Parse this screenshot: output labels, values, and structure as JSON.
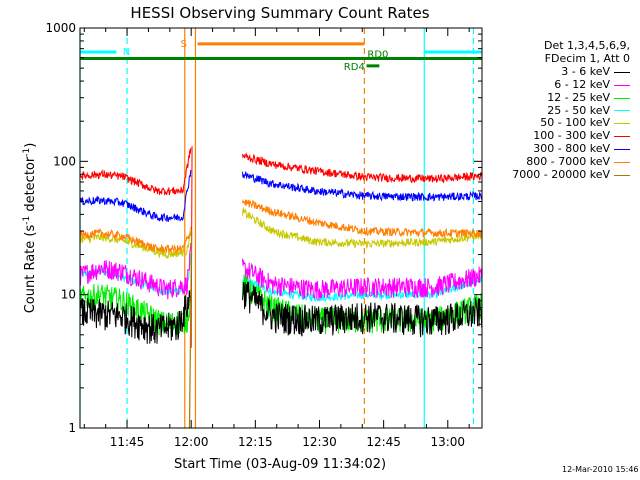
{
  "chart_data": {
    "type": "line",
    "title": "HESSI Observing Summary Count Rates",
    "xlabel": "Start Time (03-Aug-09 11:34:02)",
    "ylabel_main": "Count Rate (s",
    "ylabel_sup1": "-1",
    "ylabel_mid": " detector",
    "ylabel_sup2": "-1",
    "ylabel_end": ")",
    "y_scale": "log",
    "ylim": [
      1,
      1000
    ],
    "xlim": [
      "11:34",
      "13:08"
    ],
    "x_ticks": [
      "11:45",
      "12:00",
      "12:15",
      "12:30",
      "12:45",
      "13:00"
    ],
    "y_ticks": [
      "1",
      "10",
      "100",
      "1000"
    ],
    "legend_header": [
      "Det 1,3,4,5,6,9,",
      "FDecim 1, Att 0"
    ],
    "legend_placement": "right, outside plot",
    "series": [
      {
        "name": "3 - 6 keV",
        "color": "#000000",
        "before": [
          [
            0,
            7.5
          ],
          [
            10,
            7
          ],
          [
            18,
            5.5
          ],
          [
            23,
            6
          ],
          [
            26,
            10
          ]
        ],
        "after": [
          [
            38,
            11
          ],
          [
            45,
            7
          ],
          [
            55,
            6.5
          ],
          [
            67,
            7
          ],
          [
            83,
            6.5
          ],
          [
            94,
            7.5
          ]
        ]
      },
      {
        "name": "6 - 12 keV",
        "color": "#ff00ff",
        "before": [
          [
            0,
            14
          ],
          [
            5,
            16
          ],
          [
            10,
            15
          ],
          [
            20,
            11
          ],
          [
            25,
            12
          ],
          [
            26,
            22
          ]
        ],
        "after": [
          [
            38,
            16
          ],
          [
            45,
            12
          ],
          [
            55,
            11
          ],
          [
            67,
            11.5
          ],
          [
            83,
            11.5
          ],
          [
            94,
            14
          ]
        ]
      },
      {
        "name": "12 - 25 keV",
        "color": "#00ee00",
        "before": [
          [
            0,
            9.5
          ],
          [
            5,
            10
          ],
          [
            10,
            9
          ],
          [
            20,
            6
          ],
          [
            25,
            6.5
          ],
          [
            26,
            10
          ]
        ],
        "after": [
          [
            38,
            12
          ],
          [
            45,
            8
          ],
          [
            55,
            6.5
          ],
          [
            67,
            6.5
          ],
          [
            83,
            6.5
          ],
          [
            94,
            8.5
          ]
        ]
      },
      {
        "name": "25 - 50 keV",
        "color": "#00ffff",
        "before": [
          [
            0,
            14
          ],
          [
            5,
            15
          ],
          [
            10,
            13.5
          ],
          [
            20,
            10.5
          ],
          [
            25,
            11
          ],
          [
            26,
            20
          ]
        ],
        "after": [
          [
            38,
            13
          ],
          [
            45,
            10.5
          ],
          [
            55,
            9.5
          ],
          [
            67,
            10
          ],
          [
            83,
            10
          ],
          [
            94,
            13
          ]
        ]
      },
      {
        "name": "50 - 100 keV",
        "color": "#c8c800",
        "before": [
          [
            0,
            26
          ],
          [
            5,
            27
          ],
          [
            10,
            25.5
          ],
          [
            20,
            20
          ],
          [
            25,
            21
          ],
          [
            26,
            32
          ]
        ],
        "after": [
          [
            38,
            42
          ],
          [
            45,
            30
          ],
          [
            55,
            25
          ],
          [
            67,
            24
          ],
          [
            83,
            25
          ],
          [
            94,
            28
          ]
        ]
      },
      {
        "name": "100 - 300 keV",
        "color": "#ff0000",
        "before": [
          [
            0,
            78
          ],
          [
            5,
            80
          ],
          [
            10,
            77
          ],
          [
            18,
            60
          ],
          [
            24,
            60
          ],
          [
            26,
            130
          ]
        ],
        "after": [
          [
            38,
            110
          ],
          [
            45,
            95
          ],
          [
            55,
            85
          ],
          [
            67,
            76
          ],
          [
            83,
            74
          ],
          [
            94,
            78
          ]
        ]
      },
      {
        "name": "300 - 800 keV",
        "color": "#0000ff",
        "before": [
          [
            0,
            50
          ],
          [
            5,
            51
          ],
          [
            10,
            49
          ],
          [
            18,
            38
          ],
          [
            24,
            38
          ],
          [
            26,
            90
          ]
        ],
        "after": [
          [
            38,
            80
          ],
          [
            45,
            68
          ],
          [
            55,
            60
          ],
          [
            67,
            55
          ],
          [
            83,
            54
          ],
          [
            94,
            55
          ]
        ]
      },
      {
        "name": "800 - 7000 keV",
        "color": "#ff7f00",
        "before": [
          [
            0,
            28
          ],
          [
            5,
            29
          ],
          [
            10,
            27.5
          ],
          [
            18,
            22
          ],
          [
            24,
            22
          ],
          [
            26,
            30
          ]
        ],
        "after": [
          [
            38,
            50
          ],
          [
            45,
            42
          ],
          [
            55,
            35
          ],
          [
            67,
            30
          ],
          [
            83,
            29
          ],
          [
            94,
            29
          ]
        ]
      },
      {
        "name": "7000 - 20000 keV",
        "color": "#a67c00",
        "before": [],
        "after": []
      }
    ],
    "flags": [
      {
        "label": "N",
        "color": "#00ffff",
        "segments": [
          [
            0,
            8.5
          ],
          [
            80.5,
            94
          ]
        ],
        "y": 660
      },
      {
        "label": "S",
        "color": "#ff7f00",
        "segments": [
          [
            27.5,
            66.5
          ]
        ],
        "y": 760
      },
      {
        "label": "",
        "color": "#008000",
        "segments": [
          [
            0,
            94
          ]
        ],
        "y": 590
      },
      {
        "label": "RD4",
        "color": "#008000",
        "segments": [
          [
            67,
            70
          ]
        ],
        "y": 520
      },
      {
        "label": "RD0",
        "color": "#008000",
        "segments": [],
        "y": 600
      }
    ],
    "vlines": [
      {
        "t": 0,
        "color": "#00ffff",
        "style": "solid"
      },
      {
        "t": 11,
        "color": "#00ffff",
        "style": "dashed"
      },
      {
        "t": 24.5,
        "color": "#ff7f00",
        "style": "solid"
      },
      {
        "t": 27,
        "color": "#ff7f00",
        "style": "solid"
      },
      {
        "t": 66.5,
        "color": "#ff7f00",
        "style": "dashed"
      },
      {
        "t": 80.5,
        "color": "#00ffff",
        "style": "solid"
      },
      {
        "t": 92,
        "color": "#00ffff",
        "style": "dashed"
      }
    ]
  },
  "stamp": "12-Mar-2010 15:46"
}
